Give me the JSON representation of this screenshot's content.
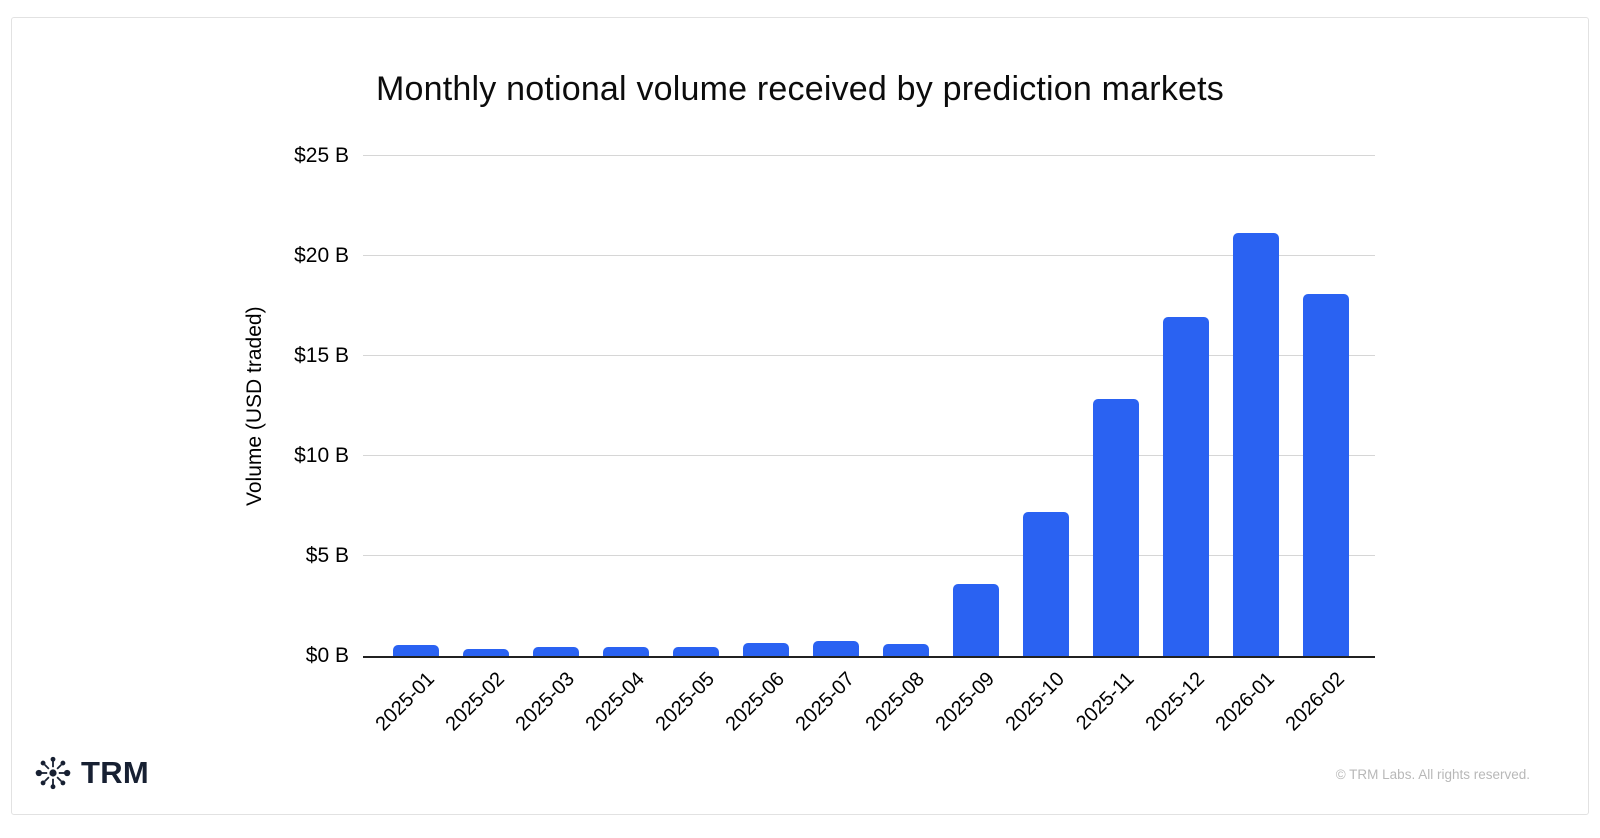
{
  "chart_data": {
    "type": "bar",
    "title": "Monthly notional volume received by prediction markets",
    "xlabel": "",
    "ylabel": "Volume (USD traded)",
    "categories": [
      "2025-01",
      "2025-02",
      "2025-03",
      "2025-04",
      "2025-05",
      "2025-06",
      "2025-07",
      "2025-08",
      "2025-09",
      "2025-10",
      "2025-11",
      "2025-12",
      "2026-01",
      "2026-02"
    ],
    "values": [
      0.55,
      0.35,
      0.45,
      0.45,
      0.45,
      0.65,
      0.75,
      0.6,
      3.6,
      7.2,
      12.85,
      16.95,
      21.15,
      18.1
    ],
    "ylim": [
      0,
      25
    ],
    "yticks": [
      0,
      5,
      10,
      15,
      20,
      25
    ],
    "ytick_labels": [
      "$0 B",
      "$5 B",
      "$10 B",
      "$15 B",
      "$20 B",
      "$25 B"
    ],
    "grid": true,
    "legend": "none",
    "bar_color": "#2a62f2",
    "gridline_color": "#d6d6d6",
    "axis_line_color": "#212121"
  },
  "footer": {
    "logo_icon": "trm-network-asterisk-icon",
    "logo_text": "TRM",
    "logo_color": "#172032",
    "copyright": "© TRM Labs. All rights reserved."
  }
}
